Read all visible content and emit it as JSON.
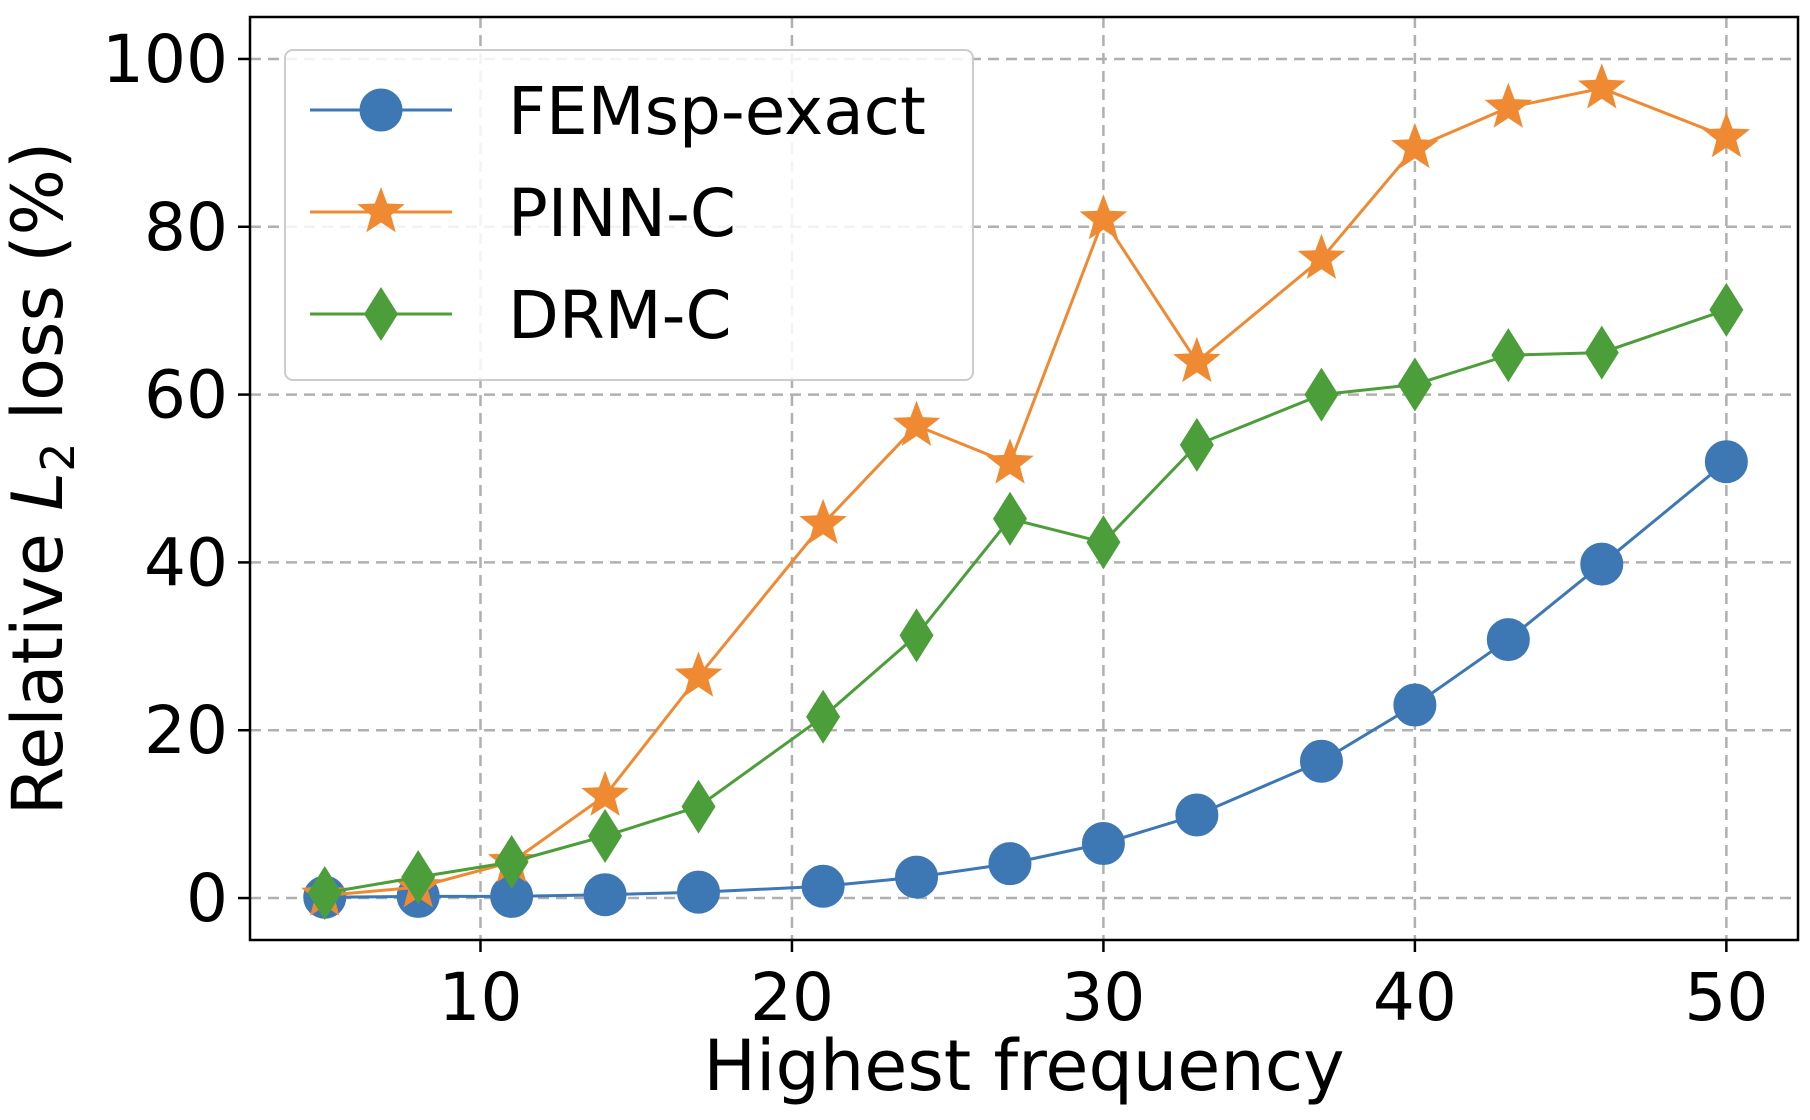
{
  "chart_data": {
    "type": "line",
    "xlabel": "Highest frequency",
    "ylabel_prefix": "Relative ",
    "ylabel_symbol": "L",
    "ylabel_subscript": "2",
    "ylabel_suffix": " loss (%)",
    "xlim": [
      2.6,
      52.3
    ],
    "ylim": [
      -5,
      105
    ],
    "xticks": [
      10,
      20,
      30,
      40,
      50
    ],
    "yticks": [
      0,
      20,
      40,
      60,
      80,
      100
    ],
    "grid": true,
    "legend_position": "top-left",
    "x": [
      5,
      8,
      11,
      14,
      17,
      21,
      24,
      27,
      30,
      33,
      37,
      40,
      43,
      46,
      50
    ],
    "series": [
      {
        "name": "FEMsp-exact",
        "color": "#3d78b5",
        "marker": "circle",
        "values": [
          0.1,
          0.2,
          0.2,
          0.4,
          0.7,
          1.4,
          2.5,
          4.1,
          6.5,
          9.9,
          16.3,
          23.0,
          30.8,
          39.8,
          52.0
        ]
      },
      {
        "name": "PINN-C",
        "color": "#f08a32",
        "marker": "star",
        "values": [
          0.3,
          1.3,
          4.3,
          12.2,
          26.4,
          44.6,
          56.3,
          51.8,
          80.9,
          63.9,
          76.2,
          89.4,
          94.2,
          96.5,
          90.7
        ]
      },
      {
        "name": "DRM-C",
        "color": "#4c9e3a",
        "marker": "diamond",
        "values": [
          0.6,
          2.5,
          4.3,
          7.4,
          10.9,
          21.6,
          31.3,
          45.2,
          42.4,
          54.0,
          60.0,
          61.2,
          64.7,
          65.0,
          70.1
        ]
      }
    ]
  }
}
